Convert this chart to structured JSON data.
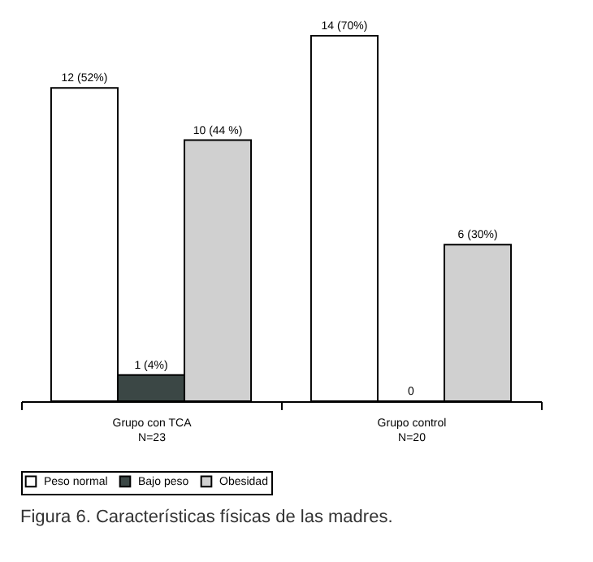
{
  "chart_data": {
    "type": "bar",
    "title": "Figura 6. Características físicas de las madres.",
    "categories": [
      "Grupo con TCA\nN=23",
      "Grupo control\nN=20"
    ],
    "series": [
      {
        "name": "Peso normal",
        "color": "#ffffff",
        "values": [
          12,
          14
        ],
        "value_labels": [
          "12 (52%)",
          "14 (70%)"
        ]
      },
      {
        "name": "Bajo peso",
        "color": "#3b4745",
        "values": [
          1,
          0
        ],
        "value_labels": [
          "1 (4%)",
          "0"
        ]
      },
      {
        "name": "Obesidad",
        "color": "#d0d0d0",
        "values": [
          10,
          6
        ],
        "value_labels": [
          "10 (44 %)",
          "6 (30%)"
        ]
      }
    ],
    "legend": "bottom",
    "grid": false,
    "tick_labels": "x"
  }
}
